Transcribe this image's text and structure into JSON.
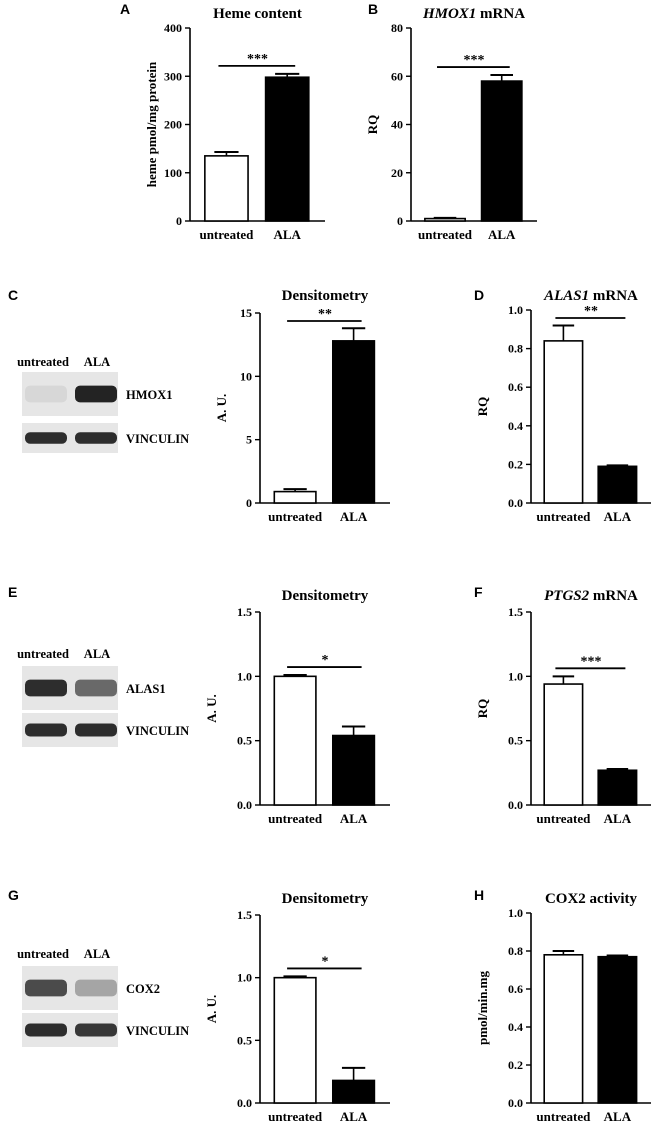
{
  "panel_letters": [
    "A",
    "B",
    "C",
    "D",
    "E",
    "F",
    "G",
    "H"
  ],
  "colors": {
    "untreated": "#ffffff",
    "ALA": "#000000",
    "axis": "#000000",
    "blot_band": "#1e1e1e",
    "blot_bg": "#e6e6e6"
  },
  "chart_data": [
    {
      "panel": "A",
      "type": "bar",
      "title": "Heme content",
      "title_italic": "",
      "title_rest": "",
      "ylabel": "heme pmol/mg protein",
      "xlabel": "",
      "categories": [
        "untreated",
        "ALA"
      ],
      "values": [
        135,
        298
      ],
      "errors": [
        8,
        7
      ],
      "ylim": [
        0,
        400
      ],
      "yticks": [
        "0",
        "100",
        "200",
        "300",
        "400"
      ],
      "significance": "***"
    },
    {
      "panel": "B",
      "type": "bar",
      "title": "",
      "title_italic": "HMOX1",
      "title_rest": " mRNA",
      "ylabel": "RQ",
      "xlabel": "",
      "categories": [
        "untreated",
        "ALA"
      ],
      "values": [
        1,
        58
      ],
      "errors": [
        0.3,
        2.5
      ],
      "ylim": [
        0,
        80
      ],
      "yticks": [
        "0",
        "20",
        "40",
        "60",
        "80"
      ],
      "significance": "***"
    },
    {
      "panel": "C",
      "type": "bar",
      "title": "Densitometry",
      "title_italic": "",
      "title_rest": "",
      "ylabel": "A. U.",
      "xlabel": "",
      "categories": [
        "untreated",
        "ALA"
      ],
      "values": [
        0.9,
        12.8
      ],
      "errors": [
        0.2,
        1.0
      ],
      "ylim": [
        0,
        15
      ],
      "yticks": [
        "0",
        "5",
        "10",
        "15"
      ],
      "significance": "**"
    },
    {
      "panel": "D",
      "type": "bar",
      "title": "",
      "title_italic": "ALAS1",
      "title_rest": " mRNA",
      "ylabel": "RQ",
      "xlabel": "",
      "categories": [
        "untreated",
        "ALA"
      ],
      "values": [
        0.84,
        0.19
      ],
      "errors": [
        0.08,
        0.005
      ],
      "ylim": [
        0,
        1.0
      ],
      "yticks": [
        "0.0",
        "0.2",
        "0.4",
        "0.6",
        "0.8",
        "1.0"
      ],
      "significance": "**"
    },
    {
      "panel": "E",
      "type": "bar",
      "title": "Densitometry",
      "title_italic": "",
      "title_rest": "",
      "ylabel": "A. U.",
      "xlabel": "",
      "categories": [
        "untreated",
        "ALA"
      ],
      "values": [
        1.0,
        0.54
      ],
      "errors": [
        0.01,
        0.07
      ],
      "ylim": [
        0,
        1.5
      ],
      "yticks": [
        "0.0",
        "0.5",
        "1.0",
        "1.5"
      ],
      "significance": "*"
    },
    {
      "panel": "F",
      "type": "bar",
      "title": "",
      "title_italic": "PTGS2",
      "title_rest": " mRNA",
      "ylabel": "RQ",
      "xlabel": "",
      "categories": [
        "untreated",
        "ALA"
      ],
      "values": [
        0.94,
        0.27
      ],
      "errors": [
        0.06,
        0.01
      ],
      "ylim": [
        0,
        1.5
      ],
      "yticks": [
        "0.0",
        "0.5",
        "1.0",
        "1.5"
      ],
      "significance": "***"
    },
    {
      "panel": "G",
      "type": "bar",
      "title": "Densitometry",
      "title_italic": "",
      "title_rest": "",
      "ylabel": "A. U.",
      "xlabel": "",
      "categories": [
        "untreated",
        "ALA"
      ],
      "values": [
        1.0,
        0.18
      ],
      "errors": [
        0.01,
        0.1
      ],
      "ylim": [
        0,
        1.5
      ],
      "yticks": [
        "0.0",
        "0.5",
        "1.0",
        "1.5"
      ],
      "significance": "*"
    },
    {
      "panel": "H",
      "type": "bar",
      "title": "COX2 activity",
      "title_italic": "",
      "title_rest": "",
      "ylabel": "pmol/min.mg",
      "xlabel": "",
      "categories": [
        "untreated",
        "ALA"
      ],
      "values": [
        0.78,
        0.77
      ],
      "errors": [
        0.02,
        0.006
      ],
      "ylim": [
        0,
        1.0
      ],
      "yticks": [
        "0.0",
        "0.2",
        "0.4",
        "0.6",
        "0.8",
        "1.0"
      ],
      "significance": ""
    }
  ],
  "blots": [
    {
      "panel": "C",
      "lanes": [
        "untreated",
        "ALA"
      ],
      "rows": [
        "HMOX1",
        "VINCULIN"
      ],
      "intensity": [
        [
          0.05,
          0.95
        ],
        [
          0.9,
          0.9
        ]
      ]
    },
    {
      "panel": "E",
      "lanes": [
        "untreated",
        "ALA"
      ],
      "rows": [
        "ALAS1",
        "VINCULIN"
      ],
      "intensity": [
        [
          0.9,
          0.6
        ],
        [
          0.9,
          0.9
        ]
      ]
    },
    {
      "panel": "G",
      "lanes": [
        "untreated",
        "ALA"
      ],
      "rows": [
        "COX2",
        "VINCULIN"
      ],
      "intensity": [
        [
          0.75,
          0.3
        ],
        [
          0.9,
          0.85
        ]
      ]
    }
  ]
}
